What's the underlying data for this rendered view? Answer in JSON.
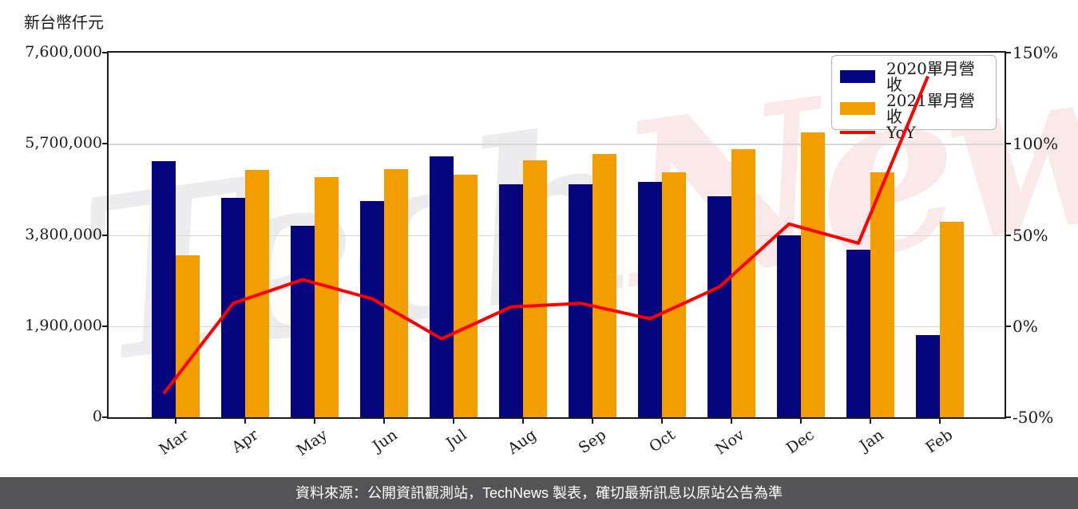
{
  "page": {
    "background": "#FFFFFF"
  },
  "watermark": {
    "part1": "Tech",
    "part2": "News",
    "color1": "#ECECEE",
    "color2": "#FBE9E9"
  },
  "footer": {
    "text": "資料來源：公開資訊觀測站，TechNews 製表，確切最新訊息以原站公告為準",
    "background": "#545456",
    "text_color": "#FFFFFF"
  },
  "chart_data": {
    "type": "bar",
    "categories": [
      "Mar",
      "Apr",
      "May",
      "Jun",
      "Jul",
      "Aug",
      "Sep",
      "Oct",
      "Nov",
      "Dec",
      "Jan",
      "Feb"
    ],
    "series": [
      {
        "name": "2020單月營收",
        "type": "bar",
        "axis": "left",
        "color": "#05057E",
        "values": [
          5340000,
          4580000,
          3990000,
          4500000,
          5430000,
          4860000,
          4860000,
          4910000,
          4600000,
          3790000,
          3500000,
          1720000
        ]
      },
      {
        "name": "2021單月營收",
        "type": "bar",
        "axis": "left",
        "color": "#F29E00",
        "values": [
          3380000,
          5160000,
          5010000,
          5180000,
          5060000,
          5360000,
          5490000,
          5100000,
          5580000,
          5940000,
          5100000,
          4080000
        ]
      },
      {
        "name": "YoY",
        "type": "line",
        "axis": "right",
        "color": "#FF0000",
        "values": [
          -37,
          12.5,
          25.5,
          15,
          -7,
          10.5,
          12.5,
          4,
          21.5,
          56,
          45.5,
          137
        ]
      }
    ],
    "left_axis": {
      "label": "新台幣仟元",
      "min": 0,
      "max": 7600000,
      "ticks": [
        "0",
        "1,900,000",
        "3,800,000",
        "5,700,000",
        "7,600,000"
      ]
    },
    "right_axis": {
      "min": -50,
      "max": 150,
      "ticks": [
        "-50%",
        "0%",
        "50%",
        "100%",
        "150%"
      ]
    },
    "legend_position": "top-right",
    "grid": "horizontal",
    "axis_color": "#1A1A1A",
    "grid_color": "#D8D8D8"
  }
}
